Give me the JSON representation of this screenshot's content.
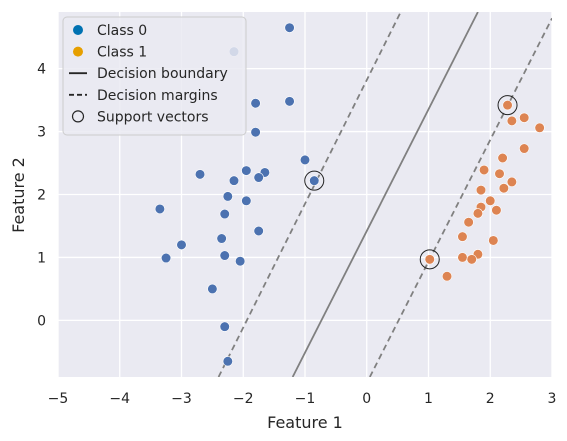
{
  "chart_data": {
    "type": "scatter",
    "title": "",
    "xlabel": "Feature 1",
    "ylabel": "Feature 2",
    "xlim": [
      -5,
      3
    ],
    "ylim": [
      -0.9,
      4.9
    ],
    "xticks": [
      -5,
      -4,
      -3,
      -2,
      -1,
      0,
      1,
      2,
      3
    ],
    "yticks": [
      0,
      1,
      2,
      3,
      4
    ],
    "grid": true,
    "background": "#eaeaf2",
    "legend_position": "top-left",
    "series": [
      {
        "name": "Class 0",
        "color": "#4c72b0",
        "points": [
          [
            -1.25,
            4.65
          ],
          [
            -2.15,
            4.27
          ],
          [
            -1.8,
            3.45
          ],
          [
            -1.25,
            3.48
          ],
          [
            -1.8,
            2.99
          ],
          [
            -1.0,
            2.55
          ],
          [
            -2.7,
            2.32
          ],
          [
            -1.95,
            2.38
          ],
          [
            -1.65,
            2.35
          ],
          [
            -1.75,
            2.27
          ],
          [
            -2.15,
            2.22
          ],
          [
            -0.85,
            2.22
          ],
          [
            -2.25,
            1.97
          ],
          [
            -1.95,
            1.9
          ],
          [
            -3.35,
            1.77
          ],
          [
            -2.3,
            1.69
          ],
          [
            -1.75,
            1.42
          ],
          [
            -2.35,
            1.3
          ],
          [
            -3.0,
            1.2
          ],
          [
            -3.25,
            0.99
          ],
          [
            -2.3,
            1.03
          ],
          [
            -2.05,
            0.94
          ],
          [
            -2.5,
            0.5
          ],
          [
            -2.3,
            -0.1
          ],
          [
            -2.25,
            -0.65
          ]
        ]
      },
      {
        "name": "Class 1",
        "color": "#dd8452",
        "points": [
          [
            2.28,
            3.42
          ],
          [
            2.55,
            3.22
          ],
          [
            2.35,
            3.17
          ],
          [
            2.8,
            3.06
          ],
          [
            2.55,
            2.73
          ],
          [
            2.2,
            2.58
          ],
          [
            1.9,
            2.39
          ],
          [
            2.15,
            2.33
          ],
          [
            2.35,
            2.2
          ],
          [
            1.85,
            2.07
          ],
          [
            2.22,
            2.1
          ],
          [
            2.0,
            1.9
          ],
          [
            1.85,
            1.8
          ],
          [
            2.1,
            1.75
          ],
          [
            1.8,
            1.7
          ],
          [
            1.65,
            1.56
          ],
          [
            1.55,
            1.33
          ],
          [
            2.05,
            1.27
          ],
          [
            1.55,
            1.0
          ],
          [
            1.8,
            1.05
          ],
          [
            1.7,
            0.97
          ],
          [
            1.02,
            0.97
          ],
          [
            1.3,
            0.7
          ]
        ]
      }
    ],
    "support_vectors": [
      [
        -0.85,
        2.22
      ],
      [
        1.02,
        0.97
      ],
      [
        2.28,
        3.42
      ]
    ],
    "decision_boundary": [
      [
        -1.2,
        -0.9
      ],
      [
        1.8,
        4.9
      ]
    ],
    "margin_lower": [
      [
        0.05,
        -0.9
      ],
      [
        3.0,
        4.8
      ]
    ],
    "margin_upper": [
      [
        -2.4,
        -0.9
      ],
      [
        0.55,
        4.9
      ]
    ],
    "legend": [
      {
        "label": "Class 0",
        "kind": "marker",
        "color": "#0072b2"
      },
      {
        "label": "Class 1",
        "kind": "marker",
        "color": "#e69f00"
      },
      {
        "label": "Decision boundary",
        "kind": "solid-line"
      },
      {
        "label": "Decision margins",
        "kind": "dashed-line"
      },
      {
        "label": "Support vectors",
        "kind": "hollow-circle"
      }
    ]
  }
}
